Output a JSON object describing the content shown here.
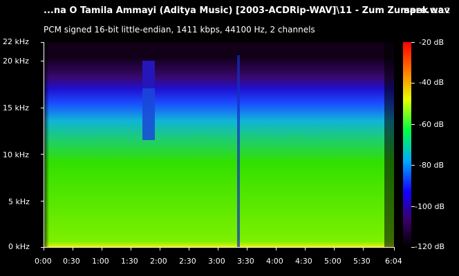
{
  "header": {
    "title": "...na O Tamila Ammayi (Aditya Music) [2003-ACDRip-WAV]\\11 - Zum Zumare.wav",
    "app_name": "spek",
    "app_version": "0.8.2",
    "info": "PCM signed 16-bit little-endian, 1411 kbps, 44100 Hz, 2 channels"
  },
  "frequency_axis": {
    "ticks": [
      "0 kHz",
      "5 kHz",
      "10 kHz",
      "15 kHz",
      "20 kHz",
      "22 kHz"
    ]
  },
  "time_axis": {
    "ticks": [
      "0:00",
      "0:30",
      "1:00",
      "1:30",
      "2:00",
      "2:30",
      "3:00",
      "3:30",
      "4:00",
      "4:30",
      "5:00",
      "5:30",
      "6:04"
    ]
  },
  "level_scale": {
    "ticks": [
      "-20 dB",
      "-40 dB",
      "-60 dB",
      "-80 dB",
      "-100 dB",
      "-120 dB"
    ]
  },
  "colors": {
    "background": "#000000",
    "text": "#ffffff"
  }
}
